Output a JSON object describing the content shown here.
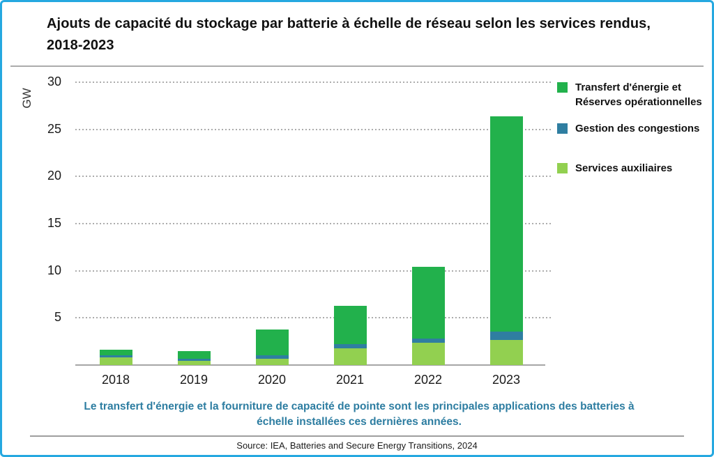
{
  "title": "Ajouts de capacité du stockage par batterie à échelle de réseau selon les services rendus, 2018-2023",
  "y_axis": {
    "unit": "GW",
    "tick_labels": [
      "5",
      "10",
      "15",
      "20",
      "25",
      "30"
    ]
  },
  "chart_data": {
    "type": "bar",
    "stacked": true,
    "title": "Ajouts de capacité du stockage par batterie à échelle de réseau selon les services rendus, 2018-2023",
    "categories": [
      "2018",
      "2019",
      "2020",
      "2021",
      "2022",
      "2023"
    ],
    "series": [
      {
        "name": "Services auxiliaires",
        "color": "#92D050",
        "values": [
          0.8,
          0.45,
          0.65,
          1.8,
          2.35,
          2.65
        ]
      },
      {
        "name": "Gestion des congestions",
        "color": "#2F7EA1",
        "values": [
          0.2,
          0.2,
          0.35,
          0.45,
          0.45,
          0.9
        ]
      },
      {
        "name": "Transfert d'énergie et Réserves opérationnelles",
        "color": "#22B14C",
        "values": [
          0.6,
          0.85,
          2.8,
          4.05,
          7.6,
          22.85
        ]
      }
    ],
    "totals": [
      1.6,
      1.5,
      3.8,
      6.3,
      10.4,
      26.4
    ],
    "xlabel": "",
    "ylabel": "GW",
    "ylim": [
      0,
      30
    ],
    "yticks": [
      5,
      10,
      15,
      20,
      25,
      30
    ],
    "grid": "horizontal dotted",
    "legend_position": "right"
  },
  "legend": {
    "items": [
      {
        "label": "Transfert d'énergie et Réserves opérationnelles",
        "color": "#22B14C"
      },
      {
        "label": "Gestion des congestions",
        "color": "#2F7EA1"
      },
      {
        "label": "Services auxiliaires",
        "color": "#92D050"
      }
    ]
  },
  "caption": "Le transfert d'énergie et la fourniture de capacité de pointe sont les principales applications des batteries à échelle installées ces dernières années.",
  "source": "Source: IEA, Batteries and Secure Energy Transitions, 2024",
  "colors": {
    "page_border": "#25A8E0",
    "caption_text": "#2D7DA1",
    "gridline": "#ACACAC",
    "axis_line": "#A6A6A6"
  }
}
